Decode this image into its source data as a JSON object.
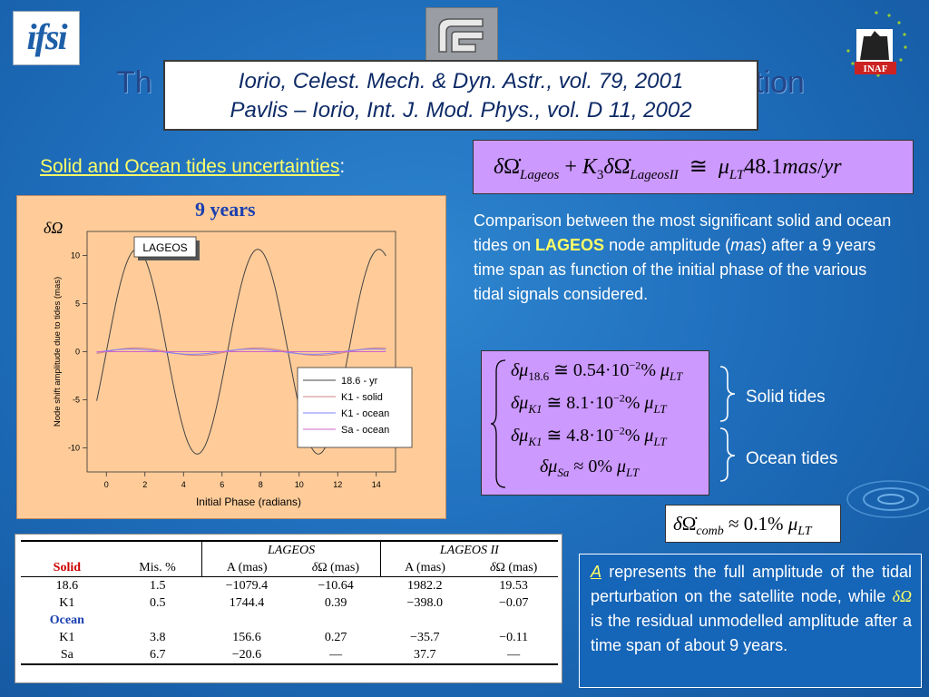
{
  "logos": {
    "left": "ifsi",
    "center": "CNR",
    "right": "INAF"
  },
  "title": {
    "left_fragment": "Th",
    "right_fragment": "tion"
  },
  "reference": {
    "line1": "Iorio, Celest. Mech. & Dyn. Astr., vol. 79, 2001",
    "line2": "Pavlis – Iorio, Int. J. Mod. Phys., vol. D 11, 2002"
  },
  "section_heading": "Solid and Ocean tides uncertainties",
  "formula_main": {
    "sub1": "Lageos",
    "k": "K",
    "k_sub": "3",
    "sub2": "LageosII",
    "rhs_value": "48.1",
    "rhs_unit": "mas",
    "rhs_per": "yr",
    "mu_sub": "LT"
  },
  "description": {
    "pre": "Comparison between the most significant solid and ocean tides on ",
    "highlight": "LAGEOS",
    "mid": " node amplitude (",
    "unit": "mas",
    "post": ") after a 9 years time span as function of the initial phase of the various tidal signals considered."
  },
  "chart_data": {
    "type": "line",
    "title": "9 years",
    "ylabel_symbol": "δΩ",
    "inset_label": "LAGEOS",
    "xlabel": "Initial Phase (radians)",
    "ylabel": "Node shift amplitude due to tides (mas)",
    "xlim": [
      -1,
      15
    ],
    "ylim": [
      -12.5,
      12.5
    ],
    "xticks": [
      0,
      2,
      4,
      6,
      8,
      10,
      12,
      14
    ],
    "yticks": [
      10,
      5,
      0,
      -5,
      -10
    ],
    "legend_position": "bottom-right",
    "series": [
      {
        "name": "18.6 - yr",
        "color": "#444444",
        "amplitude": 10.64,
        "phase": 0.0
      },
      {
        "name": "K1 - solid",
        "color": "#d08080",
        "amplitude": 0.39,
        "phase": 0.0
      },
      {
        "name": "K1 - ocean",
        "color": "#8080ff",
        "amplitude": 0.27,
        "phase": 0.3
      },
      {
        "name": "Sa - ocean",
        "color": "#cc66cc",
        "amplitude": 0.0,
        "phase": 0.0
      }
    ]
  },
  "tides": {
    "eq1": {
      "sub": "18.6",
      "value": "0.54",
      "exp": "−2"
    },
    "eq2": {
      "sub": "K1",
      "value": "8.1",
      "exp": "−2"
    },
    "eq3": {
      "sub": "K1",
      "value": "4.8",
      "exp": "−2"
    },
    "eq4": {
      "sub": "Sa",
      "value": "0"
    },
    "solid_label": "Solid tides",
    "ocean_label": "Ocean tides"
  },
  "combined": {
    "sub": "comb",
    "value": "0.1"
  },
  "table": {
    "group1": "LAGEOS",
    "group2": "LAGEOS II",
    "col_solid": "Solid",
    "col_mis": "Mis. %",
    "col_a": "A (mas)",
    "col_domega_unit": "(mas)",
    "ocean_label": "Ocean",
    "rows_solid": [
      {
        "name": "18.6",
        "mis": "1.5",
        "a1": "−1079.4",
        "d1": "−10.64",
        "a2": "1982.2",
        "d2": "19.53"
      },
      {
        "name": "K1",
        "mis": "0.5",
        "a1": "1744.4",
        "d1": "0.39",
        "a2": "−398.0",
        "d2": "−0.07"
      }
    ],
    "rows_ocean": [
      {
        "name": "K1",
        "mis": "3.8",
        "a1": "156.6",
        "d1": "0.27",
        "a2": "−35.7",
        "d2": "−0.11"
      },
      {
        "name": "Sa",
        "mis": "6.7",
        "a1": "−20.6",
        "d1": "—",
        "a2": "37.7",
        "d2": "—"
      }
    ]
  },
  "a_box": {
    "a": "A",
    "text1": " represents the full amplitude of the tidal perturbation on the satellite node, while ",
    "text2": " is the residual unmodelled amplitude after a time span of about 9 years."
  }
}
